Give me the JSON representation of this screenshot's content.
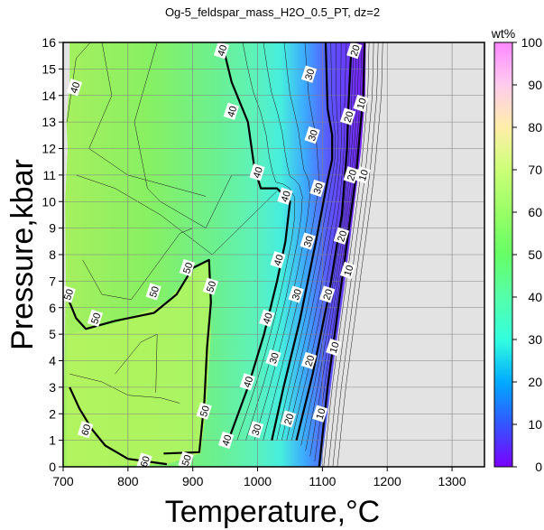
{
  "chart_data": {
    "type": "heatmap",
    "title": "Og-5_feldspar_mass_H2O_0.5_PT, dz=2",
    "xlabel": "Temperature,°C",
    "ylabel": "Pressure,kbar",
    "xlim": [
      700,
      1350
    ],
    "ylim": [
      0,
      16
    ],
    "xticks": [
      "700",
      "800",
      "900",
      "1000",
      "1100",
      "1200",
      "1300"
    ],
    "yticks": [
      "0",
      "1",
      "2",
      "3",
      "4",
      "5",
      "6",
      "7",
      "8",
      "9",
      "10",
      "11",
      "12",
      "13",
      "14",
      "15",
      "16"
    ],
    "grid": true,
    "colorbar": {
      "label": "wt%",
      "range": [
        0,
        100
      ],
      "ticks": [
        "0",
        "10",
        "20",
        "30",
        "40",
        "50",
        "60",
        "70",
        "80",
        "90",
        "100"
      ],
      "colors": [
        "#7a00ff",
        "#3355ff",
        "#00aaff",
        "#33ffdd",
        "#55ffaa",
        "#66ff66",
        "#99ff66",
        "#ccff77",
        "#ffeeaa",
        "#ffccee",
        "#ff88ff"
      ]
    },
    "no_data_color": "#e3e3e3",
    "contours": [
      {
        "level": 10,
        "points": [
          [
            1095,
            0
          ],
          [
            1108,
            3
          ],
          [
            1130,
            7
          ],
          [
            1152,
            11
          ],
          [
            1163,
            14
          ],
          [
            1165,
            16
          ]
        ]
      },
      {
        "level": 20,
        "points": [
          [
            1060,
            1
          ],
          [
            1085,
            3.5
          ],
          [
            1110,
            6.5
          ],
          [
            1130,
            9.5
          ],
          [
            1138,
            12
          ],
          [
            1140,
            13.5
          ],
          [
            1145,
            16
          ]
        ]
      },
      {
        "level": 30,
        "points": [
          [
            1022,
            1
          ],
          [
            1040,
            3
          ],
          [
            1065,
            5.5
          ],
          [
            1090,
            8.5
          ],
          [
            1108,
            10.8
          ],
          [
            1115,
            11.6
          ],
          [
            1115,
            12.5
          ],
          [
            1108,
            13.5
          ],
          [
            1105,
            16
          ]
        ]
      },
      {
        "level": 40,
        "points": [
          [
            955,
            1
          ],
          [
            985,
            3
          ],
          [
            1010,
            5
          ],
          [
            1030,
            7
          ],
          [
            1043,
            8.5
          ],
          [
            1050,
            10
          ],
          [
            1030,
            10.5
          ],
          [
            1005,
            10.5
          ],
          [
            995,
            11.3
          ],
          [
            985,
            13
          ],
          [
            960,
            14.5
          ],
          [
            945,
            16
          ]
        ]
      },
      {
        "level": 50,
        "points": [
          [
            855,
            0.5
          ],
          [
            910,
            0.55
          ],
          [
            918,
            2.5
          ],
          [
            922,
            4.5
          ],
          [
            928,
            6.2
          ],
          [
            925,
            7.8
          ],
          [
            900,
            7.5
          ],
          [
            875,
            6.5
          ],
          [
            840,
            5.8
          ],
          [
            780,
            5.5
          ],
          [
            735,
            5.2
          ],
          [
            720,
            5.6
          ],
          [
            710,
            6.2
          ],
          [
            706,
            6.5
          ]
        ]
      },
      {
        "level": 60,
        "points": [
          [
            710,
            3.0
          ],
          [
            725,
            2.2
          ],
          [
            745,
            1.4
          ],
          [
            765,
            0.8
          ],
          [
            800,
            0.3
          ],
          [
            860,
            0.1
          ]
        ]
      }
    ],
    "contour_labels": [
      {
        "text": "10",
        "x": 1097,
        "y": 2.0
      },
      {
        "text": "10",
        "x": 1118,
        "y": 4.5
      },
      {
        "text": "10",
        "x": 1140,
        "y": 7.4
      },
      {
        "text": "10",
        "x": 1163,
        "y": 11.0
      },
      {
        "text": "10",
        "x": 1160,
        "y": 13.7
      },
      {
        "text": "20",
        "x": 1048,
        "y": 1.8
      },
      {
        "text": "20",
        "x": 1080,
        "y": 4.0
      },
      {
        "text": "20",
        "x": 1108,
        "y": 6.5
      },
      {
        "text": "20",
        "x": 1130,
        "y": 8.7
      },
      {
        "text": "20",
        "x": 1145,
        "y": 11.0
      },
      {
        "text": "20",
        "x": 1140,
        "y": 13.2
      },
      {
        "text": "20",
        "x": 1150,
        "y": 15.7
      },
      {
        "text": "30",
        "x": 998,
        "y": 1.4
      },
      {
        "text": "30",
        "x": 1025,
        "y": 4.1
      },
      {
        "text": "30",
        "x": 1060,
        "y": 6.5
      },
      {
        "text": "30",
        "x": 1078,
        "y": 8.5
      },
      {
        "text": "30",
        "x": 1093,
        "y": 10.5
      },
      {
        "text": "30",
        "x": 1085,
        "y": 12.5
      },
      {
        "text": "30",
        "x": 1080,
        "y": 14.8
      },
      {
        "text": "40",
        "x": 952,
        "y": 1.0
      },
      {
        "text": "40",
        "x": 985,
        "y": 3.2
      },
      {
        "text": "40",
        "x": 1015,
        "y": 5.6
      },
      {
        "text": "40",
        "x": 1032,
        "y": 7.8
      },
      {
        "text": "40",
        "x": 1043,
        "y": 10.2
      },
      {
        "text": "40",
        "x": 1000,
        "y": 11.1
      },
      {
        "text": "40",
        "x": 960,
        "y": 13.4
      },
      {
        "text": "40",
        "x": 945,
        "y": 15.7
      },
      {
        "text": "40",
        "x": 718,
        "y": 14.3
      },
      {
        "text": "50",
        "x": 918,
        "y": 2.1
      },
      {
        "text": "50",
        "x": 928,
        "y": 6.8
      },
      {
        "text": "50",
        "x": 892,
        "y": 7.5
      },
      {
        "text": "50",
        "x": 840,
        "y": 6.6
      },
      {
        "text": "50",
        "x": 750,
        "y": 5.6
      },
      {
        "text": "50",
        "x": 708,
        "y": 6.5
      },
      {
        "text": "50",
        "x": 890,
        "y": 0.25
      },
      {
        "text": "60",
        "x": 735,
        "y": 1.4
      },
      {
        "text": "60",
        "x": 826,
        "y": 0.2
      }
    ]
  }
}
